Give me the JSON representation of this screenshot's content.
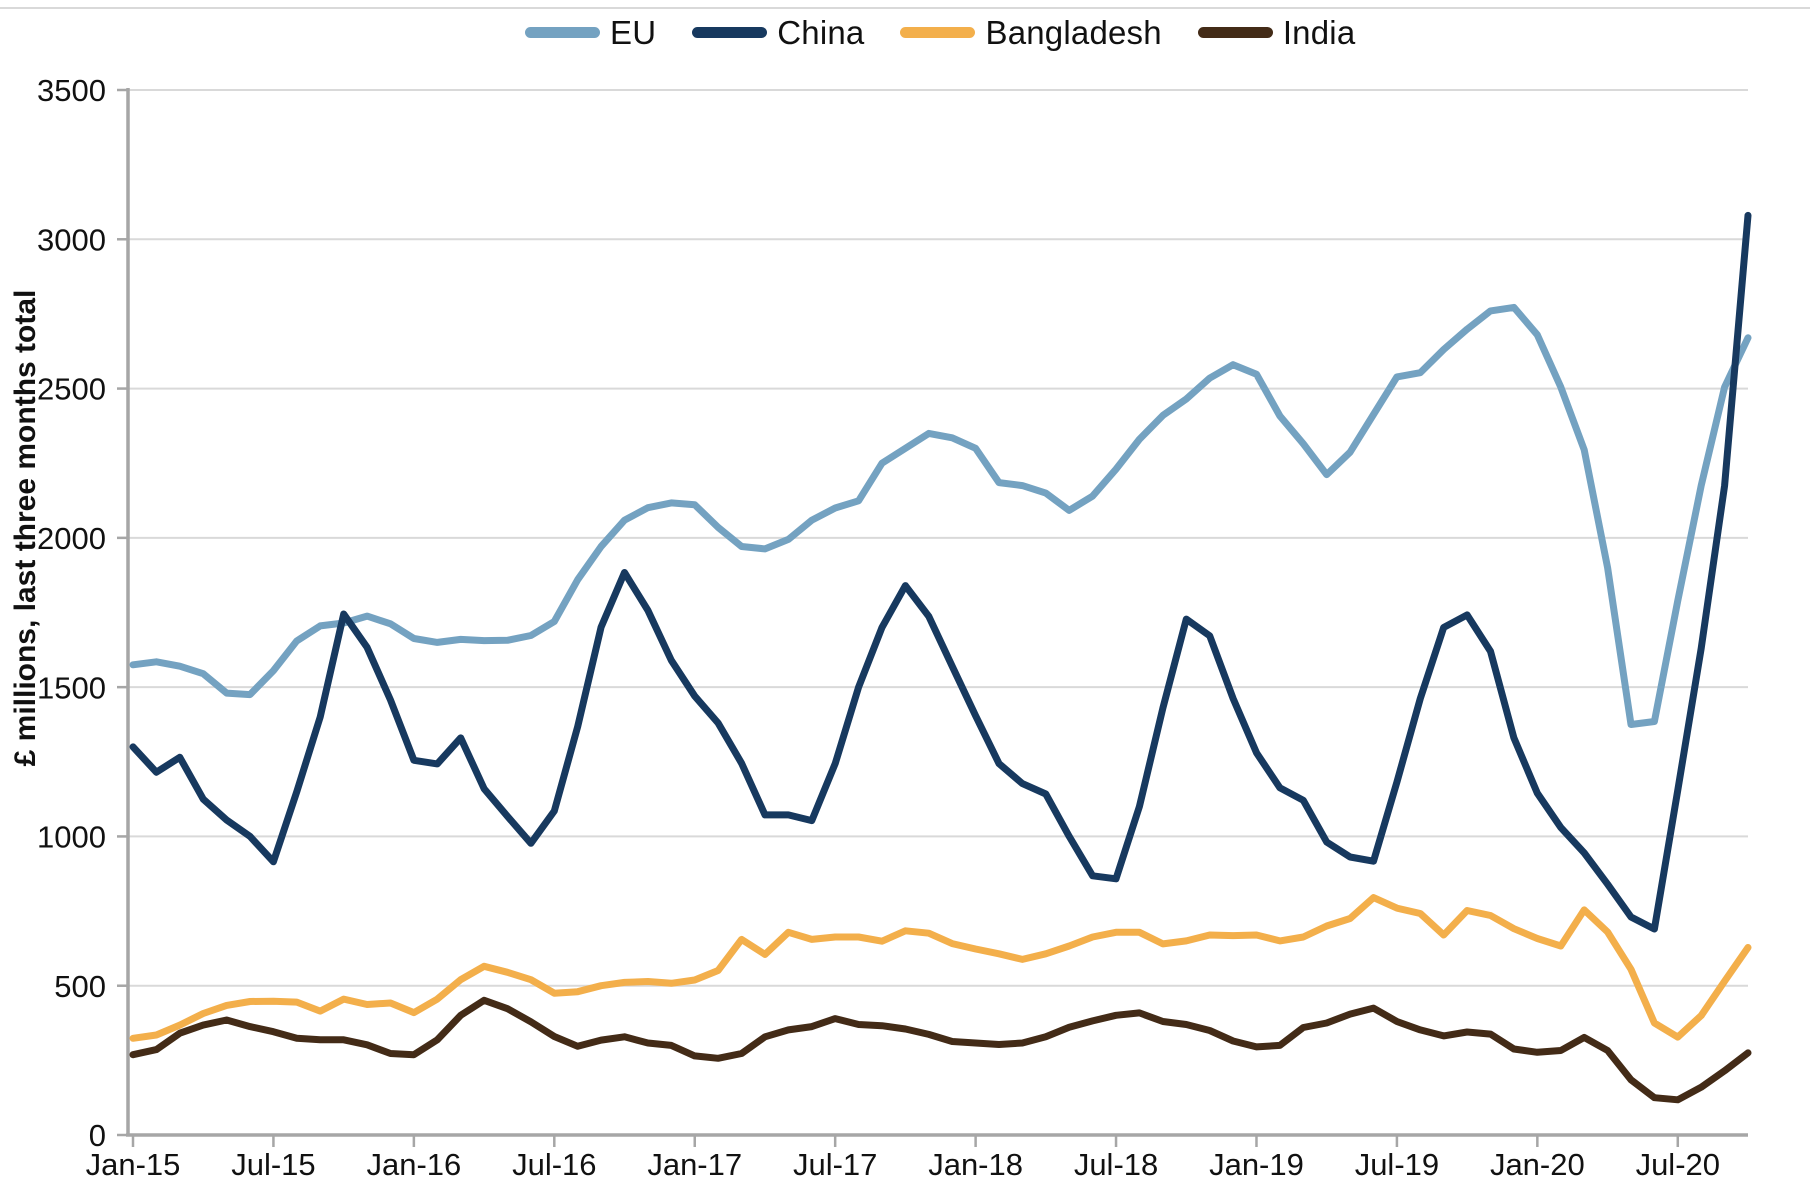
{
  "legend": [
    {
      "label": "EU",
      "color": "#74A2C1"
    },
    {
      "label": "China",
      "color": "#17395F"
    },
    {
      "label": "Bangladesh",
      "color": "#F3AF4B"
    },
    {
      "label": "India",
      "color": "#432B17"
    }
  ],
  "y_axis": {
    "title": "£ millions, last three months total",
    "tick_labels": [
      "0",
      "500",
      "1000",
      "1500",
      "2000",
      "2500",
      "3000",
      "3500"
    ],
    "tick_values": [
      0,
      500,
      1000,
      1500,
      2000,
      2500,
      3000,
      3500
    ]
  },
  "x_axis": {
    "tick_labels": [
      "Jan-15",
      "Jul-15",
      "Jan-16",
      "Jul-16",
      "Jan-17",
      "Jul-17",
      "Jan-18",
      "Jul-18",
      "Jan-19",
      "Jul-19",
      "Jan-20",
      "Jul-20"
    ],
    "tick_month_indexes": [
      0,
      6,
      12,
      18,
      24,
      30,
      36,
      42,
      48,
      54,
      60,
      66
    ]
  },
  "style": {
    "gridline_color": "#d9d9d9",
    "axis_color": "#a6a6a6",
    "text_color": "#111111",
    "series_stroke_width": 7
  },
  "chart_data": {
    "type": "line",
    "title": "",
    "xlabel": "",
    "ylabel": "£ millions, last three months total",
    "ylim": [
      0,
      3500
    ],
    "grid": true,
    "legend_position": "top",
    "x": [
      "Jan-15",
      "Feb-15",
      "Mar-15",
      "Apr-15",
      "May-15",
      "Jun-15",
      "Jul-15",
      "Aug-15",
      "Sep-15",
      "Oct-15",
      "Nov-15",
      "Dec-15",
      "Jan-16",
      "Feb-16",
      "Mar-16",
      "Apr-16",
      "May-16",
      "Jun-16",
      "Jul-16",
      "Aug-16",
      "Sep-16",
      "Oct-16",
      "Nov-16",
      "Dec-16",
      "Jan-17",
      "Feb-17",
      "Mar-17",
      "Apr-17",
      "May-17",
      "Jun-17",
      "Jul-17",
      "Aug-17",
      "Sep-17",
      "Oct-17",
      "Nov-17",
      "Dec-17",
      "Jan-18",
      "Feb-18",
      "Mar-18",
      "Apr-18",
      "May-18",
      "Jun-18",
      "Jul-18",
      "Aug-18",
      "Sep-18",
      "Oct-18",
      "Nov-18",
      "Dec-18",
      "Jan-19",
      "Feb-19",
      "Mar-19",
      "Apr-19",
      "May-19",
      "Jun-19",
      "Jul-19",
      "Aug-19",
      "Sep-19",
      "Oct-19",
      "Nov-19",
      "Dec-19",
      "Jan-20",
      "Feb-20",
      "Mar-20",
      "Apr-20",
      "May-20",
      "Jun-20",
      "Jul-20",
      "Aug-20",
      "Sep-20",
      "Oct-20"
    ],
    "series": [
      {
        "name": "EU",
        "color": "#74A2C1",
        "values": [
          1575,
          1585,
          1570,
          1545,
          1480,
          1475,
          1555,
          1655,
          1705,
          1715,
          1738,
          1712,
          1663,
          1650,
          1660,
          1656,
          1657,
          1673,
          1720,
          1860,
          1971,
          2059,
          2101,
          2117,
          2111,
          2035,
          1971,
          1963,
          1995,
          2059,
          2100,
          2124,
          2250,
          2300,
          2350,
          2335,
          2300,
          2185,
          2175,
          2150,
          2092,
          2140,
          2230,
          2330,
          2410,
          2465,
          2535,
          2580,
          2548,
          2408,
          2315,
          2212,
          2287,
          2413,
          2539,
          2553,
          2631,
          2699,
          2760,
          2772,
          2680,
          2505,
          2295,
          1900,
          1375,
          1385,
          1790,
          2175,
          2505,
          2670
        ]
      },
      {
        "name": "China",
        "color": "#17395F",
        "values": [
          1300,
          1215,
          1265,
          1125,
          1055,
          1000,
          915,
          1150,
          1400,
          1745,
          1633,
          1457,
          1255,
          1243,
          1330,
          1160,
          1067,
          977,
          1085,
          1368,
          1701,
          1884,
          1757,
          1590,
          1470,
          1380,
          1245,
          1072,
          1072,
          1053,
          1244,
          1500,
          1700,
          1840,
          1737,
          1570,
          1404,
          1244,
          1177,
          1142,
          1000,
          868,
          858,
          1100,
          1430,
          1728,
          1672,
          1462,
          1280,
          1163,
          1121,
          981,
          931,
          917,
          1182,
          1462,
          1700,
          1742,
          1620,
          1330,
          1145,
          1030,
          945,
          840,
          730,
          690,
          1155,
          1630,
          2175,
          3080
        ]
      },
      {
        "name": "Bangladesh",
        "color": "#F3AF4B",
        "values": [
          324,
          335,
          368,
          407,
          434,
          447,
          448,
          445,
          415,
          455,
          437,
          442,
          410,
          455,
          520,
          565,
          545,
          520,
          475,
          480,
          500,
          511,
          514,
          508,
          519,
          551,
          655,
          605,
          679,
          655,
          663,
          663,
          649,
          684,
          676,
          641,
          623,
          607,
          588,
          607,
          633,
          663,
          679,
          679,
          640,
          650,
          670,
          668,
          670,
          650,
          663,
          700,
          725,
          795,
          760,
          742,
          670,
          752,
          735,
          691,
          658,
          633,
          754,
          680,
          555,
          375,
          328,
          400,
          515,
          628
        ]
      },
      {
        "name": "India",
        "color": "#432B17",
        "values": [
          269,
          286,
          341,
          368,
          385,
          363,
          346,
          324,
          319,
          319,
          302,
          273,
          269,
          319,
          401,
          451,
          423,
          379,
          330,
          297,
          318,
          329,
          308,
          300,
          265,
          257,
          273,
          329,
          352,
          363,
          390,
          370,
          366,
          355,
          337,
          313,
          308,
          303,
          308,
          329,
          361,
          382,
          401,
          409,
          380,
          370,
          350,
          315,
          295,
          300,
          360,
          375,
          405,
          425,
          380,
          352,
          332,
          345,
          338,
          288,
          277,
          283,
          327,
          283,
          185,
          125,
          118,
          160,
          215,
          275
        ]
      }
    ]
  }
}
